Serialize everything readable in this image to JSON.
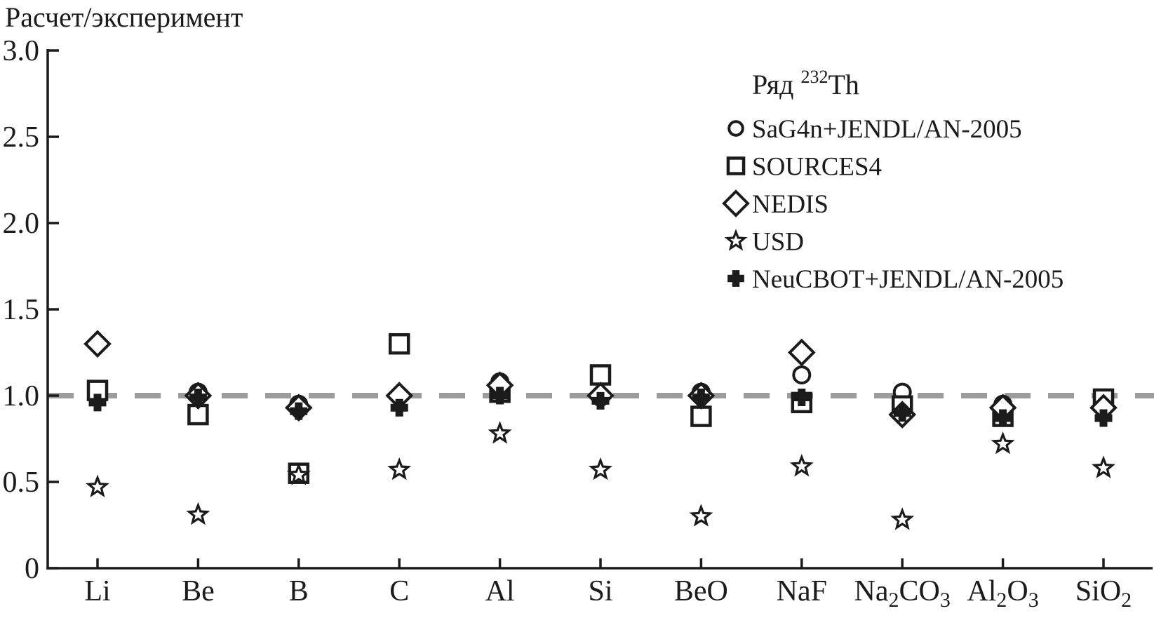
{
  "chart_data": {
    "type": "scatter",
    "title": "Расчет/эксперимент",
    "categories": [
      "Li",
      "Be",
      "B",
      "C",
      "Al",
      "Si",
      "BeO",
      "NaF",
      "Na2CO3",
      "Al2O3",
      "SiO2"
    ],
    "ylim": [
      0,
      3.0
    ],
    "y_ticks": [
      0,
      0.5,
      1.0,
      1.5,
      2.0,
      2.5,
      3.0
    ],
    "y_tick_labels": [
      "0",
      "0.5",
      "1.0",
      "1.5",
      "2.0",
      "2.5",
      "3.0"
    ],
    "reference_line": 1.0,
    "grid": false,
    "legend_position": "upper right",
    "legend_title": {
      "prefix": "Ряд ",
      "isotope": "232",
      "element": "Th"
    },
    "series": [
      {
        "name": "SaG4n+JENDL/AN-2005",
        "marker": "circle",
        "values": [
          1.02,
          1.02,
          0.95,
          1.0,
          1.08,
          0.99,
          1.02,
          1.12,
          1.02,
          0.95,
          0.94
        ]
      },
      {
        "name": "SOURCES4",
        "marker": "square",
        "values": [
          1.03,
          0.89,
          0.55,
          1.3,
          1.02,
          1.12,
          0.88,
          0.96,
          0.94,
          0.88,
          0.98
        ]
      },
      {
        "name": "NEDIS",
        "marker": "diamond",
        "values": [
          1.3,
          1.0,
          0.93,
          1.0,
          1.06,
          1.0,
          1.0,
          1.25,
          0.89,
          0.93,
          0.93
        ]
      },
      {
        "name": "USD",
        "marker": "star",
        "values": [
          0.47,
          0.31,
          0.54,
          0.57,
          0.78,
          0.57,
          0.3,
          0.59,
          0.28,
          0.72,
          0.58
        ]
      },
      {
        "name": "NeuCBOT+JENDL/AN-2005",
        "marker": "plus",
        "values": [
          0.96,
          0.99,
          0.91,
          0.93,
          1.0,
          0.97,
          0.99,
          0.99,
          0.9,
          0.87,
          0.87
        ]
      }
    ],
    "colors": {
      "marker": "#1b1b1b",
      "reference_line": "#9c9c9c",
      "background": "#ffffff"
    }
  }
}
